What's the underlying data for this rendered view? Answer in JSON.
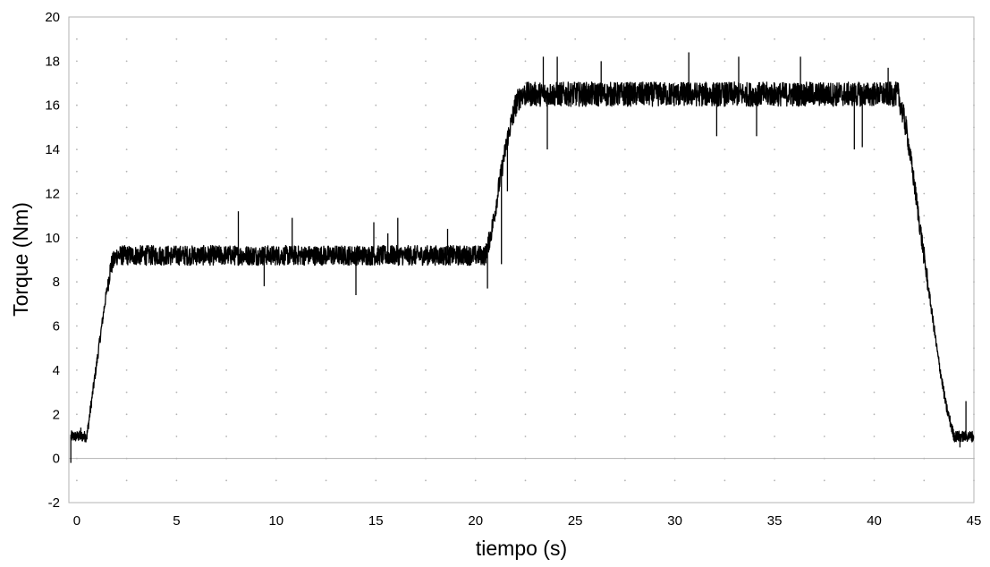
{
  "chart_data": {
    "type": "line",
    "title": "",
    "xlabel": "tiempo (s)",
    "ylabel": "Torque (Nm)",
    "xlim": [
      -0.4,
      45
    ],
    "ylim": [
      -2,
      20
    ],
    "x_ticks": [
      0,
      5,
      10,
      15,
      20,
      25,
      30,
      35,
      40,
      45
    ],
    "y_ticks": [
      -2,
      0,
      2,
      4,
      6,
      8,
      10,
      12,
      14,
      16,
      18,
      20
    ],
    "grid": "dotted",
    "legend": "none",
    "line_color": "#000000",
    "series": [
      {
        "x": [
          -0.3,
          -0.1,
          0.2,
          0.5,
          0.8,
          1.1,
          1.4,
          1.7,
          2.0,
          4.0,
          6.0,
          8.0,
          10.0,
          12.0,
          14.0,
          16.0,
          18.0,
          20.0,
          20.5,
          20.8,
          21.0,
          21.2,
          21.4,
          21.6,
          21.8,
          22.0,
          22.3,
          25.0,
          30.0,
          35.0,
          40.0,
          41.2,
          41.6,
          42.0,
          42.4,
          42.8,
          43.2,
          43.6,
          44.0,
          44.3,
          44.6,
          45.0
        ],
        "y": [
          1.0,
          1.0,
          1.0,
          1.0,
          3.0,
          5.0,
          7.0,
          8.7,
          9.2,
          9.2,
          9.2,
          9.2,
          9.2,
          9.2,
          9.2,
          9.2,
          9.2,
          9.2,
          9.2,
          10.3,
          11.3,
          12.5,
          13.5,
          14.5,
          15.2,
          16.0,
          16.5,
          16.5,
          16.5,
          16.5,
          16.5,
          16.5,
          15.0,
          12.5,
          9.8,
          7.2,
          4.6,
          2.4,
          1.0,
          1.0,
          1.0,
          1.0
        ],
        "spikes": [
          {
            "x": -0.3,
            "y": -0.2
          },
          {
            "x": 0.2,
            "y": 1.4
          },
          {
            "x": 8.1,
            "y": 11.2
          },
          {
            "x": 9.4,
            "y": 7.8
          },
          {
            "x": 10.8,
            "y": 10.9
          },
          {
            "x": 14.0,
            "y": 7.4
          },
          {
            "x": 14.9,
            "y": 10.7
          },
          {
            "x": 15.6,
            "y": 10.2
          },
          {
            "x": 16.1,
            "y": 10.9
          },
          {
            "x": 18.6,
            "y": 10.4
          },
          {
            "x": 20.6,
            "y": 7.7
          },
          {
            "x": 21.3,
            "y": 8.8
          },
          {
            "x": 21.6,
            "y": 12.1
          },
          {
            "x": 23.4,
            "y": 18.2
          },
          {
            "x": 23.6,
            "y": 14.0
          },
          {
            "x": 24.1,
            "y": 18.2
          },
          {
            "x": 26.3,
            "y": 18.0
          },
          {
            "x": 30.7,
            "y": 18.4
          },
          {
            "x": 32.1,
            "y": 14.6
          },
          {
            "x": 33.2,
            "y": 18.2
          },
          {
            "x": 34.1,
            "y": 14.6
          },
          {
            "x": 36.3,
            "y": 18.2
          },
          {
            "x": 39.0,
            "y": 14.0
          },
          {
            "x": 39.4,
            "y": 14.1
          },
          {
            "x": 40.7,
            "y": 17.7
          },
          {
            "x": 44.3,
            "y": 0.5
          },
          {
            "x": 44.6,
            "y": 2.6
          }
        ]
      }
    ]
  }
}
